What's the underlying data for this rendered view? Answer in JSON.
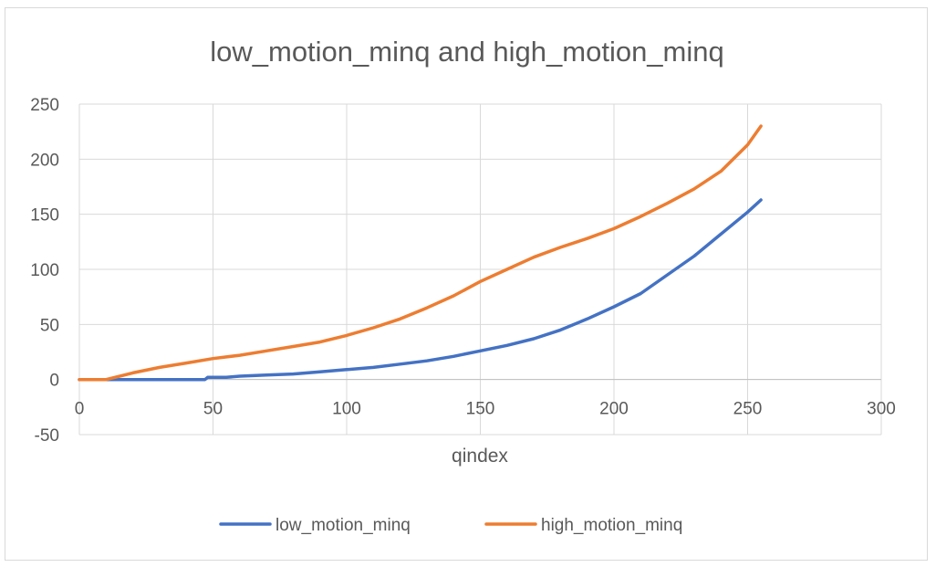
{
  "chart_data": {
    "type": "line",
    "title": "low_motion_minq and high_motion_minq",
    "xlabel": "qindex",
    "ylabel": "",
    "xlim": [
      0,
      300
    ],
    "ylim": [
      -50,
      250
    ],
    "x_ticks": [
      0,
      50,
      100,
      150,
      200,
      250,
      300
    ],
    "y_ticks": [
      -50,
      0,
      50,
      100,
      150,
      200,
      250
    ],
    "grid": true,
    "legend_position": "bottom",
    "series": [
      {
        "name": "low_motion_minq",
        "color": "#4472c4",
        "x": [
          0,
          10,
          20,
          30,
          40,
          47,
          48,
          55,
          60,
          70,
          80,
          90,
          100,
          110,
          120,
          130,
          140,
          150,
          160,
          170,
          180,
          190,
          200,
          210,
          220,
          230,
          240,
          250,
          255
        ],
        "y": [
          0,
          0,
          0,
          0,
          0,
          0,
          2,
          2,
          3,
          4,
          5,
          7,
          9,
          11,
          14,
          17,
          21,
          26,
          31,
          37,
          45,
          55,
          66,
          78,
          95,
          112,
          132,
          152,
          163
        ]
      },
      {
        "name": "high_motion_minq",
        "color": "#ed7d31",
        "x": [
          0,
          10,
          20,
          30,
          40,
          50,
          60,
          70,
          80,
          90,
          100,
          110,
          120,
          130,
          140,
          150,
          160,
          170,
          180,
          190,
          200,
          210,
          220,
          230,
          240,
          250,
          255
        ],
        "y": [
          0,
          0,
          6,
          11,
          15,
          19,
          22,
          26,
          30,
          34,
          40,
          47,
          55,
          65,
          76,
          89,
          100,
          111,
          120,
          128,
          137,
          148,
          160,
          173,
          189,
          213,
          230
        ]
      }
    ]
  }
}
